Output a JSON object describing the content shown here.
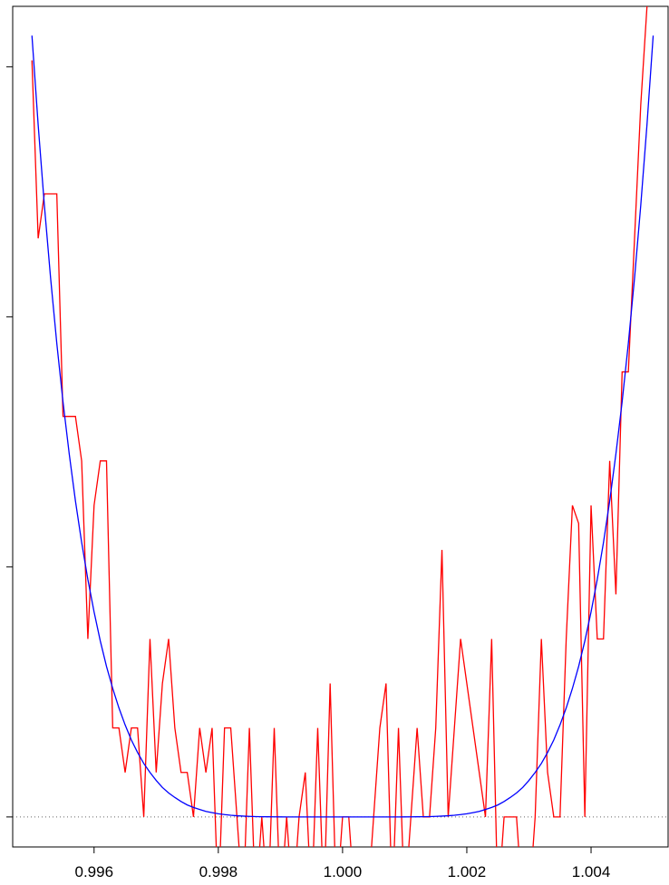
{
  "chart_data": {
    "type": "line",
    "x": [
      0.995,
      0.9951,
      0.9952,
      0.9953,
      0.9954,
      0.9955,
      0.9956,
      0.9957,
      0.9958,
      0.9959,
      0.996,
      0.9961,
      0.9962,
      0.9963,
      0.9964,
      0.9965,
      0.9966,
      0.9967,
      0.9968,
      0.9969,
      0.997,
      0.9971,
      0.9972,
      0.9973,
      0.9974,
      0.9975,
      0.9976,
      0.9977,
      0.9978,
      0.9979,
      0.998,
      0.9981,
      0.9982,
      0.9983,
      0.9984,
      0.9985,
      0.9986,
      0.9987,
      0.9988,
      0.9989,
      0.999,
      0.9991,
      0.9992,
      0.9993,
      0.9994,
      0.9995,
      0.9996,
      0.9997,
      0.9998,
      0.9999,
      1.0,
      1.0001,
      1.0002,
      1.0003,
      1.0004,
      1.0005,
      1.0006,
      1.0007,
      1.0008,
      1.0009,
      1.001,
      1.0011,
      1.0012,
      1.0013,
      1.0014,
      1.0015,
      1.0016,
      1.0017,
      1.0018,
      1.0019,
      1.002,
      1.0021,
      1.0022,
      1.0023,
      1.0024,
      1.0025,
      1.0026,
      1.0027,
      1.0028,
      1.0029,
      1.003,
      1.0031,
      1.0032,
      1.0033,
      1.0034,
      1.0035,
      1.0036,
      1.0037,
      1.0038,
      1.0039,
      1.004,
      1.0041,
      1.0042,
      1.0043,
      1.0044,
      1.0045,
      1.0046,
      1.0047,
      1.0048,
      1.0049,
      1.005
    ],
    "series": [
      {
        "color": "#ff0000",
        "values": [
          1.513e-14,
          1.157e-14,
          1.246e-14,
          1.246e-14,
          1.246e-14,
          8.01e-15,
          8.01e-15,
          8.01e-15,
          7.12e-15,
          3.56e-15,
          6.23e-15,
          7.12e-15,
          7.12e-15,
          1.78e-15,
          1.78e-15,
          8.9e-16,
          1.78e-15,
          1.78e-15,
          0,
          3.56e-15,
          8.9e-16,
          2.67e-15,
          3.56e-15,
          1.78e-15,
          8.9e-16,
          8.9e-16,
          0,
          1.78e-15,
          8.9e-16,
          1.78e-15,
          -1.78e-15,
          1.78e-15,
          1.78e-15,
          0,
          -1.78e-15,
          1.78e-15,
          -1.78e-15,
          0,
          -1.78e-15,
          1.78e-15,
          -1.78e-15,
          0,
          -1.78e-15,
          0,
          8.9e-16,
          -1.78e-15,
          1.78e-15,
          -1.78e-15,
          2.67e-15,
          -1.78e-15,
          0,
          0,
          -1.78e-15,
          -1.78e-15,
          -1.78e-15,
          0,
          1.78e-15,
          2.67e-15,
          -1.78e-15,
          1.78e-15,
          -1.78e-15,
          0,
          1.78e-15,
          0,
          0,
          1.78e-15,
          5.34e-15,
          0,
          1.78e-15,
          3.56e-15,
          2.67e-15,
          1.78e-15,
          8.9e-16,
          0,
          3.56e-15,
          -1.78e-15,
          0,
          0,
          0,
          -1.78e-15,
          -1.78e-15,
          0,
          3.56e-15,
          8.9e-16,
          0,
          0,
          3.56e-15,
          6.23e-15,
          5.87e-15,
          0,
          6.23e-15,
          3.56e-15,
          3.56e-15,
          7.12e-15,
          4.45e-15,
          8.9e-15,
          8.9e-15,
          1.157e-14,
          1.424e-14,
          1.62e-14,
          1.691e-14
        ]
      },
      {
        "color": "#0000ff",
        "values": [
          1.5625e-14,
          1.384e-14,
          1.223e-14,
          1.078e-14,
          9.47e-15,
          8.3e-15,
          7.26e-15,
          6.32e-15,
          5.49e-15,
          4.75e-15,
          4.1e-15,
          3.52e-15,
          3.01e-15,
          2.57e-15,
          2.18e-15,
          1.84e-15,
          1.54e-15,
          1.29e-15,
          1.07e-15,
          8.9e-16,
          7.3e-16,
          5.9e-16,
          4.8e-16,
          3.9e-16,
          3.1e-16,
          2.4e-16,
          1.9e-16,
          1.5e-16,
          1.1e-16,
          8.6e-17,
          6.4e-17,
          4.7e-17,
          3.4e-17,
          2.4e-17,
          1.7e-17,
          1.1e-17,
          7.5e-18,
          4.8e-18,
          3e-18,
          1.8e-18,
          1e-18,
          5.3e-19,
          2.6e-19,
          1.2e-19,
          4.7e-20,
          1.6e-20,
          4.1e-21,
          7.3e-22,
          6.4e-23,
          1e-24,
          0,
          1e-24,
          6.4e-23,
          7.3e-22,
          4.1e-21,
          1.6e-20,
          4.7e-20,
          1.2e-19,
          2.6e-19,
          5.3e-19,
          1e-18,
          1.8e-18,
          3e-18,
          4.8e-18,
          7.5e-18,
          1.1e-17,
          1.7e-17,
          2.4e-17,
          3.4e-17,
          4.7e-17,
          6.4e-17,
          8.6e-17,
          1.1e-16,
          1.5e-16,
          1.9e-16,
          2.4e-16,
          3.1e-16,
          3.9e-16,
          4.8e-16,
          5.9e-16,
          7.3e-16,
          8.9e-16,
          1.07e-15,
          1.29e-15,
          1.54e-15,
          1.84e-15,
          2.18e-15,
          2.57e-15,
          3.01e-15,
          3.52e-15,
          4.1e-15,
          4.75e-15,
          5.49e-15,
          6.32e-15,
          7.26e-15,
          8.3e-15,
          9.47e-15,
          1.078e-14,
          1.223e-14,
          1.384e-14,
          1.5625e-14
        ]
      }
    ],
    "xlim": [
      0.99469,
      1.00524
    ],
    "xticks": [
      0.996,
      0.998,
      {
        "value": 1,
        "label": "1.000"
      },
      1.002,
      1.004
    ],
    "ylim": [
      -6e-16,
      1.621e-14
    ],
    "yticks": [
      0,
      5e-15,
      1e-14,
      1.5e-14
    ],
    "ytick_labels": false,
    "hline": 0
  }
}
